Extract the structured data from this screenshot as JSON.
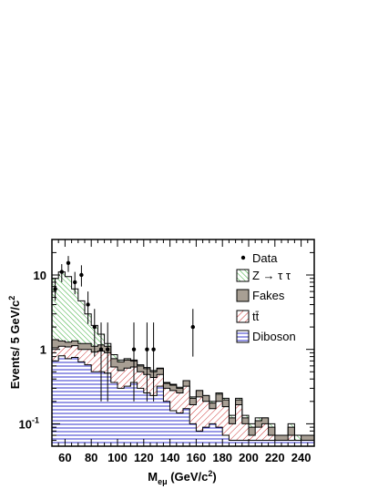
{
  "chart_data": {
    "type": "histogram",
    "title": "",
    "xlabel": {
      "main": "M",
      "sub": "eμ",
      "rest": " (GeV/c",
      "sup": "2",
      "close": ")"
    },
    "ylabel": {
      "main": "Events/ 5 GeV/c",
      "sup": "2"
    },
    "xlim": [
      50,
      250
    ],
    "ylim": [
      0.05,
      30
    ],
    "yscale": "log",
    "bin_width": 5,
    "x_ticks": [
      60,
      80,
      100,
      120,
      140,
      160,
      180,
      200,
      220,
      240
    ],
    "x_tick_labels": [
      "60",
      "80",
      "100",
      "120",
      "140",
      "160",
      "180",
      "200",
      "220",
      "240"
    ],
    "y_ticks": [
      {
        "value": 0.1,
        "base": "10",
        "exp": "-1"
      },
      {
        "value": 1,
        "base": "1",
        "exp": ""
      },
      {
        "value": 10,
        "base": "10",
        "exp": ""
      }
    ],
    "legend": {
      "placement": "top-right",
      "entries": [
        {
          "key": "data",
          "text": "Data"
        },
        {
          "key": "ztautau",
          "text": "Z → τ τ"
        },
        {
          "key": "fakes",
          "text": "Fakes"
        },
        {
          "key": "ttbar",
          "text": "tt̄"
        },
        {
          "key": "diboson",
          "text": "Diboson"
        }
      ]
    },
    "colors": {
      "diboson": "#3333cc",
      "ttbar": "#cc3333",
      "fakes": "#a89f94",
      "ztautau": "#33aa33"
    },
    "bin_low_edges": [
      50,
      55,
      60,
      65,
      70,
      75,
      80,
      85,
      90,
      95,
      100,
      105,
      110,
      115,
      120,
      125,
      130,
      135,
      140,
      145,
      150,
      155,
      160,
      165,
      170,
      175,
      180,
      185,
      190,
      195,
      200,
      205,
      210,
      215,
      220,
      225,
      230,
      235,
      240,
      245
    ],
    "stack_cumulative": {
      "diboson": [
        0.7,
        0.82,
        0.75,
        0.78,
        0.68,
        0.62,
        0.5,
        0.5,
        0.48,
        0.36,
        0.3,
        0.32,
        0.36,
        0.3,
        0.26,
        0.24,
        0.32,
        0.2,
        0.15,
        0.14,
        0.16,
        0.1,
        0.08,
        0.09,
        0.1,
        0.09,
        0.07,
        0.06,
        0.06,
        0.06,
        0.06,
        0.06,
        0.06,
        0.06,
        0.06,
        0.06,
        0.06,
        0.06,
        0.06,
        0.06
      ],
      "ttbar": [
        1.05,
        1.1,
        1.08,
        1.12,
        1.0,
        1.0,
        0.92,
        0.95,
        0.9,
        0.58,
        0.52,
        0.56,
        0.58,
        0.5,
        0.46,
        0.42,
        0.46,
        0.3,
        0.28,
        0.26,
        0.32,
        0.18,
        0.23,
        0.2,
        0.16,
        0.2,
        0.17,
        0.1,
        0.18,
        0.1,
        0.07,
        0.09,
        0.1,
        0.07,
        0.06,
        0.06,
        0.07,
        0.06,
        0.06,
        0.06
      ],
      "fakes": [
        1.35,
        1.3,
        1.25,
        1.3,
        1.2,
        1.2,
        1.1,
        1.15,
        1.1,
        0.75,
        0.68,
        0.72,
        0.7,
        0.6,
        0.55,
        0.5,
        0.55,
        0.35,
        0.33,
        0.3,
        0.38,
        0.22,
        0.28,
        0.24,
        0.19,
        0.25,
        0.21,
        0.12,
        0.21,
        0.12,
        0.09,
        0.11,
        0.12,
        0.09,
        0.07,
        0.07,
        0.09,
        0.06,
        0.07,
        0.07
      ],
      "ztautau": [
        9.0,
        11.0,
        9.5,
        6.5,
        4.5,
        3.0,
        2.1,
        1.6,
        1.2,
        0.85,
        0.72,
        0.75,
        0.72,
        0.62,
        0.57,
        0.52,
        0.56,
        0.36,
        0.34,
        0.31,
        0.38,
        0.23,
        0.28,
        0.24,
        0.2,
        0.26,
        0.22,
        0.13,
        0.22,
        0.13,
        0.1,
        0.12,
        0.12,
        0.1,
        0.07,
        0.07,
        0.1,
        0.07,
        0.07,
        0.07
      ]
    },
    "data_points": [
      {
        "x": 52.5,
        "y": 6.5,
        "ylo": 4.5,
        "yhi": 9.0
      },
      {
        "x": 57.5,
        "y": 11.0,
        "ylo": 8.0,
        "yhi": 14.0
      },
      {
        "x": 62.5,
        "y": 14.5,
        "ylo": 11.0,
        "yhi": 18.0
      },
      {
        "x": 67.5,
        "y": 8.0,
        "ylo": 5.5,
        "yhi": 11.0
      },
      {
        "x": 72.5,
        "y": 10.0,
        "ylo": 7.0,
        "yhi": 13.5
      },
      {
        "x": 77.5,
        "y": 4.0,
        "ylo": 2.2,
        "yhi": 6.0
      },
      {
        "x": 82.5,
        "y": 2.0,
        "ylo": 0.8,
        "yhi": 3.5
      },
      {
        "x": 87.5,
        "y": 1.0,
        "ylo": 0.2,
        "yhi": 2.3
      },
      {
        "x": 92.5,
        "y": 1.0,
        "ylo": 0.2,
        "yhi": 2.3
      },
      {
        "x": 112.5,
        "y": 1.0,
        "ylo": 0.2,
        "yhi": 2.3
      },
      {
        "x": 122.5,
        "y": 1.0,
        "ylo": 0.2,
        "yhi": 2.3
      },
      {
        "x": 127.5,
        "y": 1.0,
        "ylo": 0.2,
        "yhi": 2.3
      },
      {
        "x": 157.5,
        "y": 2.0,
        "ylo": 0.8,
        "yhi": 3.5
      }
    ]
  }
}
